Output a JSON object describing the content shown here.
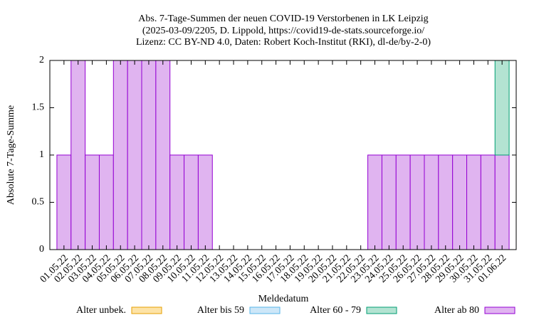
{
  "chart_data": {
    "type": "bar",
    "stacked": true,
    "title": [
      "Abs. 7-Tage-Summen der neuen COVID-19 Verstorbenen in LK Leipzig",
      "(2025-03-09/2205, D. Lippold, https://covid19-de-stats.sourceforge.io/",
      "Lizenz: CC BY-ND 4.0, Daten: Robert Koch-Institut (RKI), dl-de/by-2-0)"
    ],
    "x_label": "Meldedatum",
    "y_label": "Absolute 7-Tage-Summe",
    "categories": [
      "01.05.22",
      "02.05.22",
      "03.05.22",
      "04.05.22",
      "05.05.22",
      "06.05.22",
      "07.05.22",
      "08.05.22",
      "09.05.22",
      "10.05.22",
      "11.05.22",
      "12.05.22",
      "13.05.22",
      "14.05.22",
      "15.05.22",
      "16.05.22",
      "17.05.22",
      "18.05.22",
      "19.05.22",
      "20.05.22",
      "21.05.22",
      "22.05.22",
      "23.05.22",
      "24.05.22",
      "25.05.22",
      "26.05.22",
      "27.05.22",
      "28.05.22",
      "29.05.22",
      "30.05.22",
      "31.05.22",
      "01.06.22"
    ],
    "series": [
      {
        "name": "Alter unbek.",
        "color": "#fde3a7",
        "edge": "#e69f00",
        "values": [
          0,
          0,
          0,
          0,
          0,
          0,
          0,
          0,
          0,
          0,
          0,
          0,
          0,
          0,
          0,
          0,
          0,
          0,
          0,
          0,
          0,
          0,
          0,
          0,
          0,
          0,
          0,
          0,
          0,
          0,
          0,
          0
        ]
      },
      {
        "name": "Alter bis 59",
        "color": "#cde7f8",
        "edge": "#56b4e9",
        "values": [
          0,
          0,
          0,
          0,
          0,
          0,
          0,
          0,
          0,
          0,
          0,
          0,
          0,
          0,
          0,
          0,
          0,
          0,
          0,
          0,
          0,
          0,
          0,
          0,
          0,
          0,
          0,
          0,
          0,
          0,
          0,
          0
        ]
      },
      {
        "name": "Alter 60 - 79",
        "color": "#b3e3d2",
        "edge": "#009e73",
        "values": [
          0,
          0,
          0,
          0,
          0,
          0,
          0,
          0,
          0,
          0,
          0,
          0,
          0,
          0,
          0,
          0,
          0,
          0,
          0,
          0,
          0,
          0,
          0,
          0,
          0,
          0,
          0,
          0,
          0,
          0,
          0,
          1
        ]
      },
      {
        "name": "Alter ab 80",
        "color": "#e0b4f0",
        "edge": "#9400d3",
        "values": [
          1,
          2,
          1,
          1,
          2,
          2,
          2,
          2,
          1,
          1,
          1,
          0,
          0,
          0,
          0,
          0,
          0,
          0,
          0,
          0,
          0,
          0,
          1,
          1,
          1,
          1,
          1,
          1,
          1,
          1,
          1,
          1
        ]
      }
    ],
    "ylim": [
      0,
      2
    ],
    "yticks": [
      0,
      0.5,
      1,
      1.5,
      2
    ],
    "grid": false
  }
}
